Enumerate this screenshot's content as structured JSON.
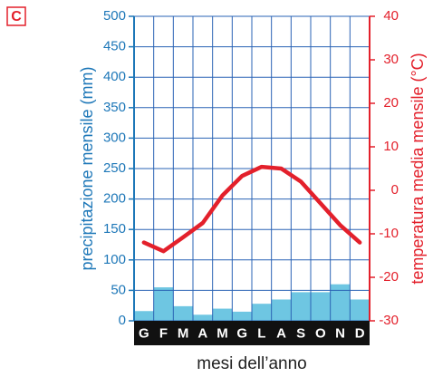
{
  "chart_data": {
    "type": "combo",
    "panel_label": "C",
    "xlabel": "mesi dell’anno",
    "ylabel": "precipitazione mensile (mm)",
    "y2label": "temperatura media mensile (°C)",
    "categories": [
      "G",
      "F",
      "M",
      "A",
      "M",
      "G",
      "L",
      "A",
      "S",
      "O",
      "N",
      "D"
    ],
    "series": [
      {
        "type": "bar",
        "color": "#6ec6e2",
        "values": [
          16,
          55,
          24,
          10,
          20,
          15,
          28,
          35,
          47,
          47,
          60,
          35
        ]
      },
      {
        "type": "line",
        "axis": "y2",
        "color": "#e3202b",
        "values": [
          -12,
          -14,
          -10.8,
          -7.5,
          -1.2,
          3.3,
          5.4,
          5,
          2,
          -3,
          -8,
          -12
        ]
      }
    ],
    "ylim": [
      0,
      500
    ],
    "yticks": [
      0,
      50,
      100,
      150,
      200,
      250,
      300,
      350,
      400,
      450,
      500
    ],
    "y2lim": [
      -30,
      40
    ],
    "y2ticks": [
      -30,
      -20,
      -10,
      0,
      10,
      20,
      30,
      40
    ],
    "grid": true,
    "grid_color": "#2a63b5",
    "y_color": "#1d77b8",
    "y2_color": "#e3202b"
  }
}
